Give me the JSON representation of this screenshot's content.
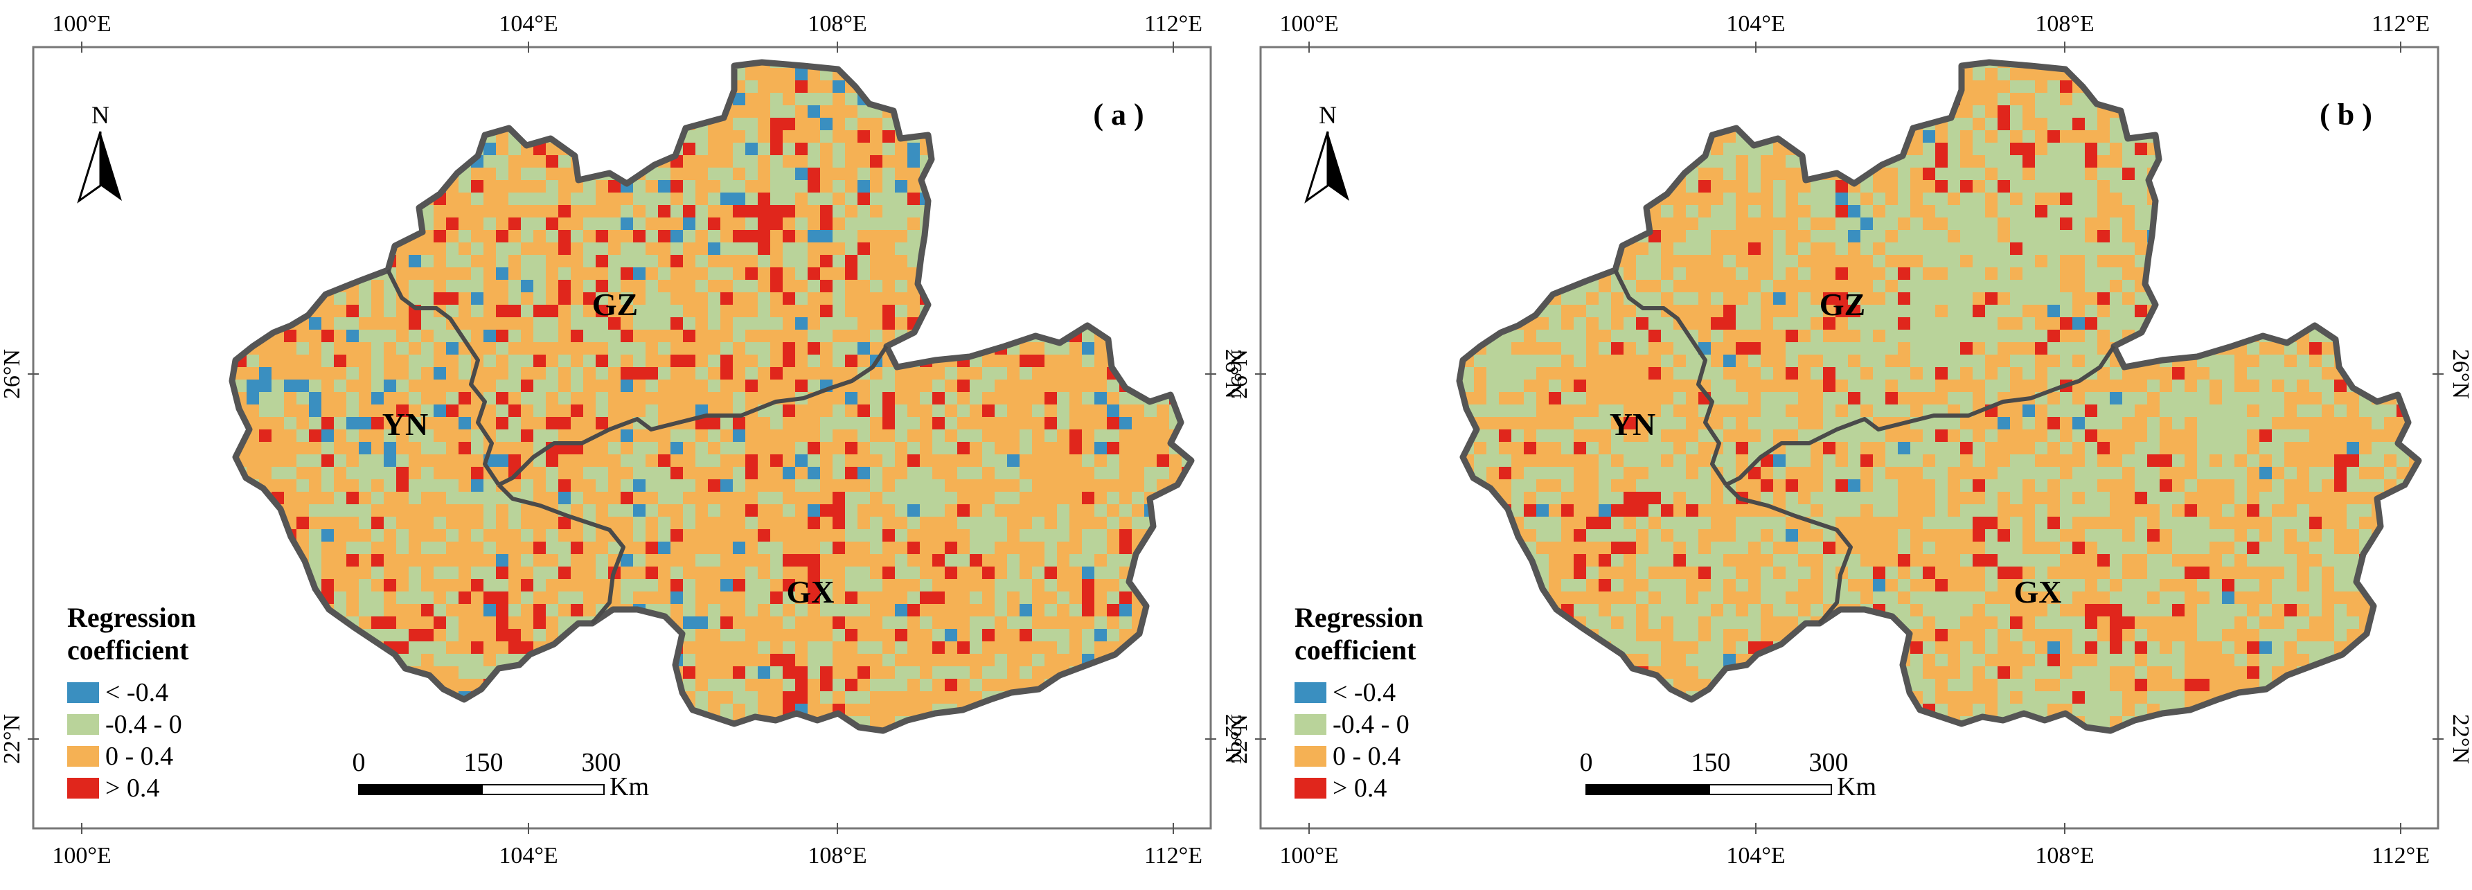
{
  "figure": {
    "panels": [
      {
        "label": "( a )",
        "regions": {
          "yn": "YN",
          "gz": "GZ",
          "gx": "GX"
        },
        "grid_seed": 7,
        "class_shares": {
          "negative_strong": 0.04,
          "negative": 0.28,
          "positive": 0.58,
          "positive_strong": 0.1
        }
      },
      {
        "label": "( b )",
        "regions": {
          "yn": "YN",
          "gz": "GZ",
          "gx": "GX"
        },
        "grid_seed": 19,
        "class_shares": {
          "negative_strong": 0.01,
          "negative": 0.42,
          "positive": 0.52,
          "positive_strong": 0.05
        }
      }
    ],
    "ticks": {
      "longitude": [
        "100°E",
        "104°E",
        "108°E",
        "112°E"
      ],
      "latitude": [
        "26°N",
        "22°N"
      ]
    },
    "north_arrow": {
      "label": "N"
    },
    "legend": {
      "title_line1": "Regression",
      "title_line2": "coefficient",
      "items": [
        {
          "label": "< -0.4",
          "color": "#3a8fc0"
        },
        {
          "label": "-0.4 - 0",
          "color": "#b9d39a"
        },
        {
          "label": "0 - 0.4",
          "color": "#f5b154"
        },
        {
          "label": "> 0.4",
          "color": "#e0261c"
        }
      ]
    },
    "scale_bar": {
      "labels": [
        "0",
        "150",
        "300"
      ],
      "unit": "Km"
    },
    "colors": {
      "frame": "#777777",
      "outline": "#555555",
      "inner_border": "#4a4a4a"
    }
  }
}
